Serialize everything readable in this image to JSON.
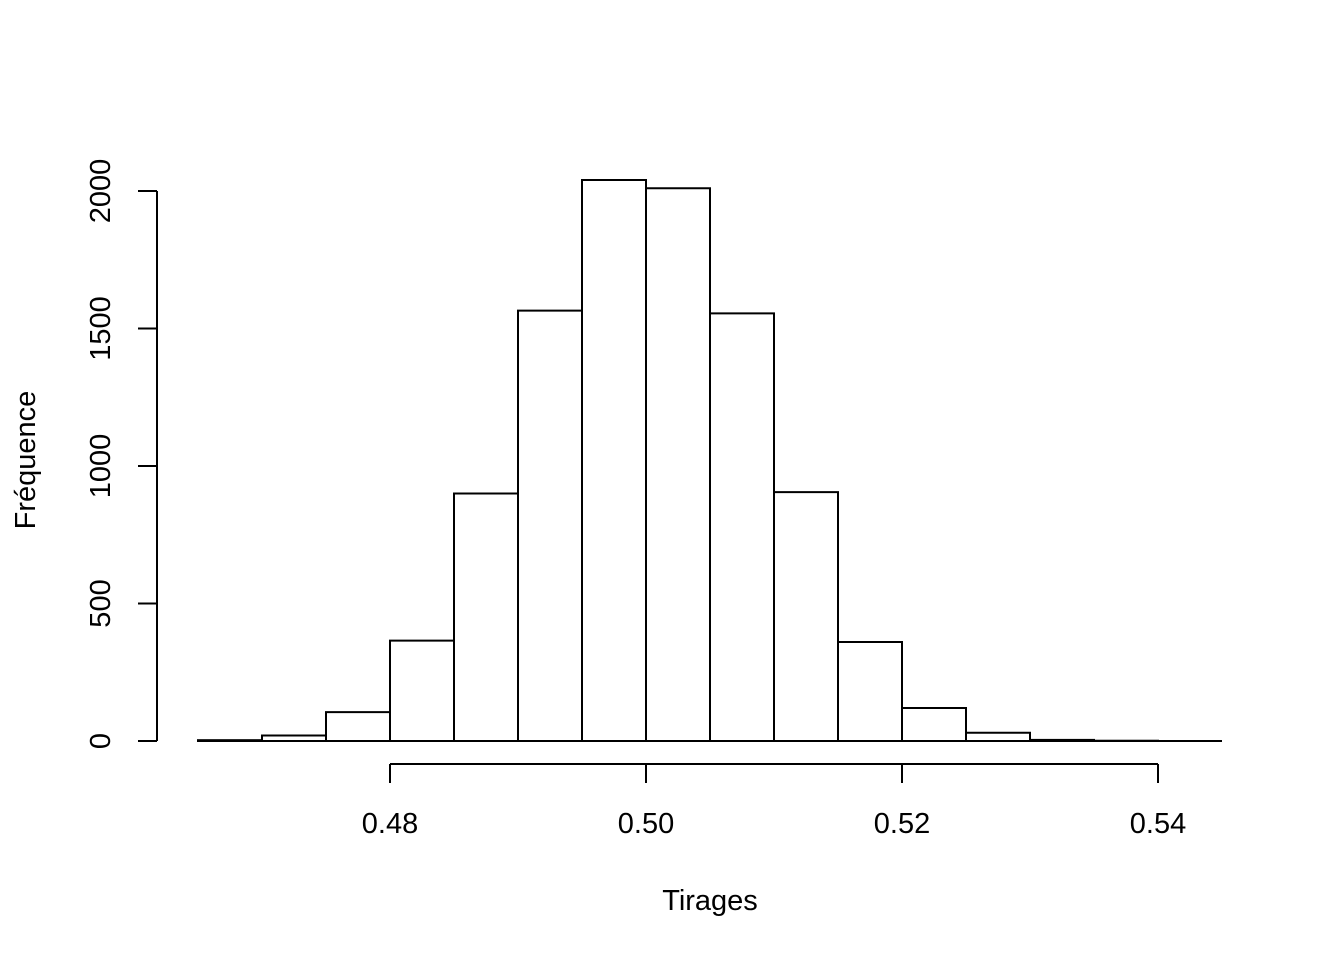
{
  "chart_data": {
    "type": "bar",
    "title": "",
    "xlabel": "Tirages",
    "ylabel": "Fréquence",
    "bins": [
      {
        "start": 0.465,
        "end": 0.47,
        "count": 3
      },
      {
        "start": 0.47,
        "end": 0.475,
        "count": 20
      },
      {
        "start": 0.475,
        "end": 0.48,
        "count": 105
      },
      {
        "start": 0.48,
        "end": 0.485,
        "count": 365
      },
      {
        "start": 0.485,
        "end": 0.49,
        "count": 900
      },
      {
        "start": 0.49,
        "end": 0.495,
        "count": 1565
      },
      {
        "start": 0.495,
        "end": 0.5,
        "count": 2040
      },
      {
        "start": 0.5,
        "end": 0.505,
        "count": 2010
      },
      {
        "start": 0.505,
        "end": 0.51,
        "count": 1555
      },
      {
        "start": 0.51,
        "end": 0.515,
        "count": 905
      },
      {
        "start": 0.515,
        "end": 0.52,
        "count": 360
      },
      {
        "start": 0.52,
        "end": 0.525,
        "count": 120
      },
      {
        "start": 0.525,
        "end": 0.53,
        "count": 30
      },
      {
        "start": 0.53,
        "end": 0.535,
        "count": 4
      },
      {
        "start": 0.535,
        "end": 0.54,
        "count": 1
      },
      {
        "start": 0.54,
        "end": 0.545,
        "count": 0
      }
    ],
    "x_ticks": [
      {
        "value": 0.48,
        "label": "0.48"
      },
      {
        "value": 0.5,
        "label": "0.50"
      },
      {
        "value": 0.52,
        "label": "0.52"
      },
      {
        "value": 0.54,
        "label": "0.54"
      }
    ],
    "y_ticks": [
      {
        "value": 0,
        "label": "0"
      },
      {
        "value": 500,
        "label": "500"
      },
      {
        "value": 1000,
        "label": "1000"
      },
      {
        "value": 1500,
        "label": "1500"
      },
      {
        "value": 2000,
        "label": "2000"
      }
    ],
    "xlim": [
      0.465,
      0.545
    ],
    "ylim": [
      0,
      2000
    ],
    "grid": false,
    "legend": "none",
    "colors": {
      "fill": "#ffffff",
      "stroke": "#000000"
    }
  }
}
